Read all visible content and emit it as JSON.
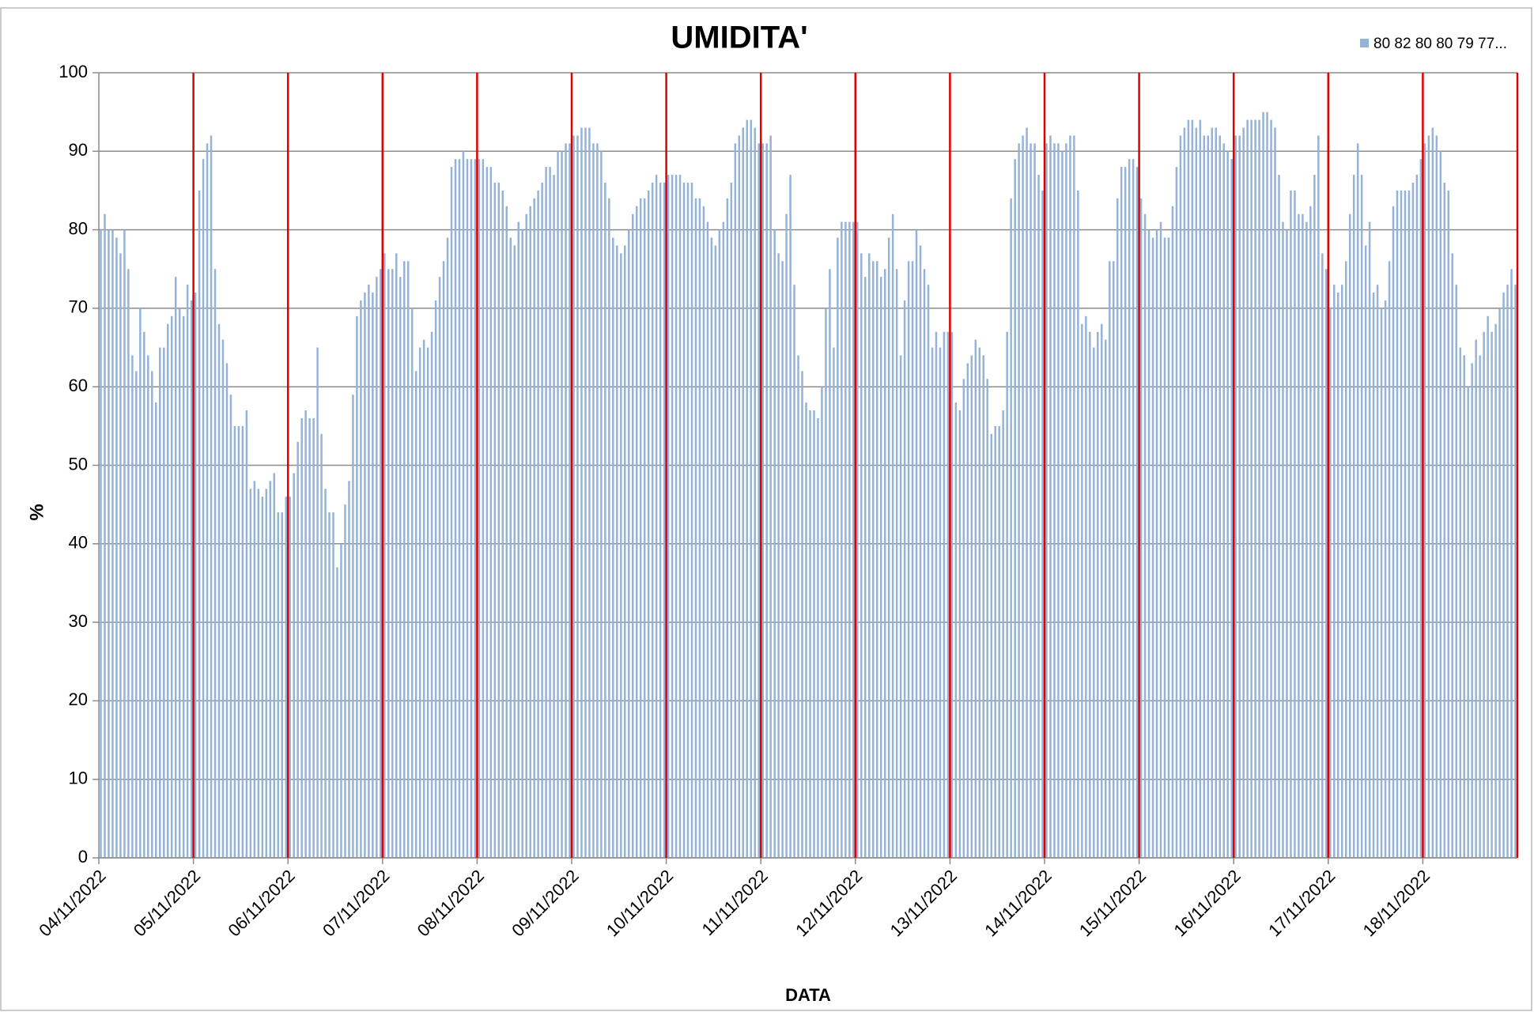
{
  "chart_data": {
    "type": "bar",
    "title": "UMIDITA'",
    "x_label": "DATA",
    "y_label": "%",
    "ylim": [
      0,
      100
    ],
    "yticks": [
      0,
      10,
      20,
      30,
      40,
      50,
      60,
      70,
      80,
      90,
      100
    ],
    "grid": true,
    "legend_position": "top-right",
    "categories": [
      "04/11/2022",
      null,
      null,
      null,
      null,
      null,
      null,
      null,
      null,
      null,
      null,
      null,
      null,
      null,
      null,
      null,
      null,
      null,
      null,
      null,
      null,
      null,
      null,
      null,
      "05/11/2022",
      null,
      null,
      null,
      null,
      null,
      null,
      null,
      null,
      null,
      null,
      null,
      null,
      null,
      null,
      null,
      null,
      null,
      null,
      null,
      null,
      null,
      null,
      null,
      "06/11/2022",
      null,
      null,
      null,
      null,
      null,
      null,
      null,
      null,
      null,
      null,
      null,
      null,
      null,
      null,
      null,
      null,
      null,
      null,
      null,
      null,
      null,
      null,
      null,
      "07/11/2022",
      null,
      null,
      null,
      null,
      null,
      null,
      null,
      null,
      null,
      null,
      null,
      null,
      null,
      null,
      null,
      null,
      null,
      null,
      null,
      null,
      null,
      null,
      null,
      "08/11/2022",
      null,
      null,
      null,
      null,
      null,
      null,
      null,
      null,
      null,
      null,
      null,
      null,
      null,
      null,
      null,
      null,
      null,
      null,
      null,
      null,
      null,
      null,
      null,
      "09/11/2022",
      null,
      null,
      null,
      null,
      null,
      null,
      null,
      null,
      null,
      null,
      null,
      null,
      null,
      null,
      null,
      null,
      null,
      null,
      null,
      null,
      null,
      null,
      null,
      "10/11/2022",
      null,
      null,
      null,
      null,
      null,
      null,
      null,
      null,
      null,
      null,
      null,
      null,
      null,
      null,
      null,
      null,
      null,
      null,
      null,
      null,
      null,
      null,
      null,
      "11/11/2022",
      null,
      null,
      null,
      null,
      null,
      null,
      null,
      null,
      null,
      null,
      null,
      null,
      null,
      null,
      null,
      null,
      null,
      null,
      null,
      null,
      null,
      null,
      null,
      "12/11/2022",
      null,
      null,
      null,
      null,
      null,
      null,
      null,
      null,
      null,
      null,
      null,
      null,
      null,
      null,
      null,
      null,
      null,
      null,
      null,
      null,
      null,
      null,
      null,
      "13/11/2022",
      null,
      null,
      null,
      null,
      null,
      null,
      null,
      null,
      null,
      null,
      null,
      null,
      null,
      null,
      null,
      null,
      null,
      null,
      null,
      null,
      null,
      null,
      null,
      "14/11/2022",
      null,
      null,
      null,
      null,
      null,
      null,
      null,
      null,
      null,
      null,
      null,
      null,
      null,
      null,
      null,
      null,
      null,
      null,
      null,
      null,
      null,
      null,
      null,
      "15/11/2022",
      null,
      null,
      null,
      null,
      null,
      null,
      null,
      null,
      null,
      null,
      null,
      null,
      null,
      null,
      null,
      null,
      null,
      null,
      null,
      null,
      null,
      null,
      null,
      "16/11/2022",
      null,
      null,
      null,
      null,
      null,
      null,
      null,
      null,
      null,
      null,
      null,
      null,
      null,
      null,
      null,
      null,
      null,
      null,
      null,
      null,
      null,
      null,
      null,
      "17/11/2022",
      null,
      null,
      null,
      null,
      null,
      null,
      null,
      null,
      null,
      null,
      null,
      null,
      null,
      null,
      null,
      null,
      null,
      null,
      null,
      null,
      null,
      null,
      null,
      "18/11/2022",
      null,
      null,
      null,
      null,
      null,
      null,
      null,
      null,
      null,
      null,
      null,
      null,
      null,
      null,
      null,
      null,
      null,
      null,
      null,
      null,
      null,
      null,
      null
    ],
    "series": [
      {
        "name": "80 82 80 80 79 77...",
        "color": "#95b3d7",
        "values": [
          80,
          82,
          80,
          80,
          79,
          77,
          80,
          75,
          64,
          62,
          70,
          67,
          64,
          62,
          58,
          65,
          65,
          68,
          69,
          74,
          70,
          69,
          73,
          71,
          72,
          85,
          89,
          91,
          92,
          75,
          68,
          66,
          63,
          59,
          55,
          55,
          55,
          57,
          47,
          48,
          47,
          46,
          47,
          48,
          49,
          44,
          44,
          46,
          46,
          49,
          53,
          56,
          57,
          56,
          56,
          65,
          54,
          47,
          44,
          44,
          37,
          40,
          45,
          48,
          59,
          69,
          71,
          72,
          73,
          72,
          74,
          75,
          77,
          75,
          75,
          77,
          74,
          76,
          76,
          70,
          62,
          65,
          66,
          65,
          67,
          71,
          74,
          76,
          79,
          88,
          89,
          89,
          90,
          89,
          89,
          89,
          89,
          89,
          88,
          88,
          86,
          86,
          85,
          83,
          79,
          78,
          81,
          80,
          82,
          83,
          84,
          85,
          86,
          88,
          88,
          87,
          90,
          90,
          91,
          91,
          92,
          92,
          93,
          93,
          93,
          91,
          91,
          90,
          86,
          84,
          79,
          78,
          77,
          78,
          80,
          82,
          83,
          84,
          84,
          85,
          86,
          87,
          86,
          86,
          87,
          87,
          87,
          87,
          86,
          86,
          86,
          84,
          84,
          83,
          81,
          79,
          78,
          80,
          81,
          84,
          86,
          91,
          92,
          93,
          94,
          94,
          93,
          91,
          91,
          91,
          92,
          80,
          77,
          76,
          82,
          87,
          73,
          64,
          62,
          58,
          57,
          57,
          56,
          60,
          70,
          75,
          65,
          79,
          81,
          81,
          81,
          81,
          81,
          77,
          74,
          77,
          76,
          76,
          74,
          75,
          79,
          82,
          75,
          64,
          71,
          76,
          76,
          80,
          78,
          75,
          73,
          65,
          67,
          65,
          67,
          67,
          67,
          58,
          57,
          61,
          63,
          64,
          66,
          65,
          64,
          61,
          54,
          55,
          55,
          57,
          67,
          84,
          89,
          91,
          92,
          93,
          91,
          91,
          87,
          85,
          91,
          92,
          91,
          91,
          90,
          91,
          92,
          92,
          85,
          68,
          69,
          67,
          65,
          67,
          68,
          66,
          76,
          76,
          84,
          88,
          88,
          89,
          89,
          88,
          84,
          82,
          80,
          79,
          80,
          81,
          79,
          79,
          83,
          88,
          92,
          93,
          94,
          94,
          93,
          94,
          92,
          92,
          93,
          93,
          92,
          91,
          90,
          89,
          92,
          92,
          93,
          94,
          94,
          94,
          94,
          95,
          95,
          94,
          93,
          87,
          81,
          80,
          85,
          85,
          82,
          82,
          81,
          83,
          87,
          92,
          77,
          75,
          70,
          73,
          72,
          73,
          76,
          82,
          87,
          91,
          87,
          78,
          81,
          72,
          73,
          70,
          71,
          76,
          83,
          85,
          85,
          85,
          85,
          86,
          87,
          89,
          91,
          92,
          93,
          92,
          90,
          86,
          85,
          77,
          73,
          65,
          64,
          60,
          63,
          66,
          64,
          67,
          69,
          67,
          68,
          70,
          72,
          73,
          75,
          73
        ]
      }
    ]
  }
}
